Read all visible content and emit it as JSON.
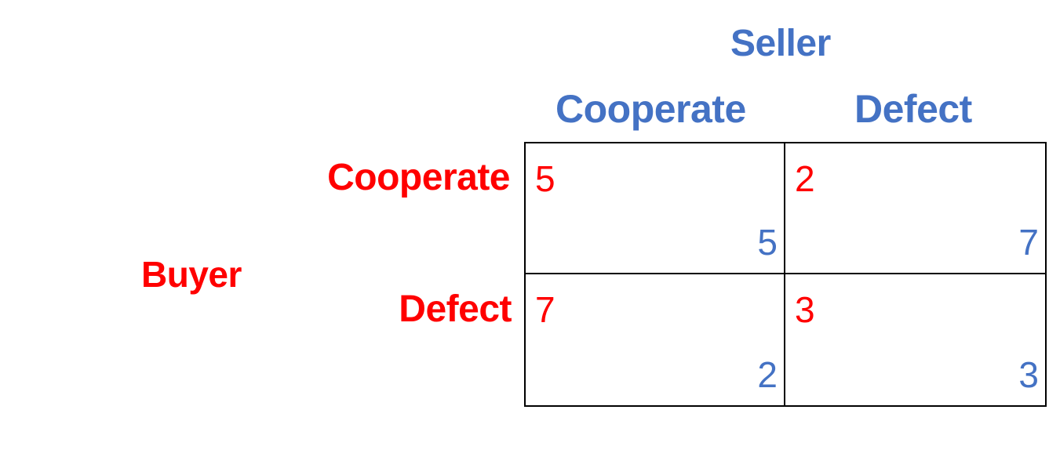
{
  "colors": {
    "buyer": "#ff0000",
    "seller": "#4472c4",
    "grid": "#000000"
  },
  "column_player": {
    "name": "Seller",
    "strategies": [
      "Cooperate",
      "Defect"
    ]
  },
  "row_player": {
    "name": "Buyer",
    "strategies": [
      "Cooperate",
      "Defect"
    ]
  },
  "payoffs": [
    [
      {
        "buyer": "5",
        "seller": "5"
      },
      {
        "buyer": "2",
        "seller": "7"
      }
    ],
    [
      {
        "buyer": "7",
        "seller": "2"
      },
      {
        "buyer": "3",
        "seller": "3"
      }
    ]
  ]
}
